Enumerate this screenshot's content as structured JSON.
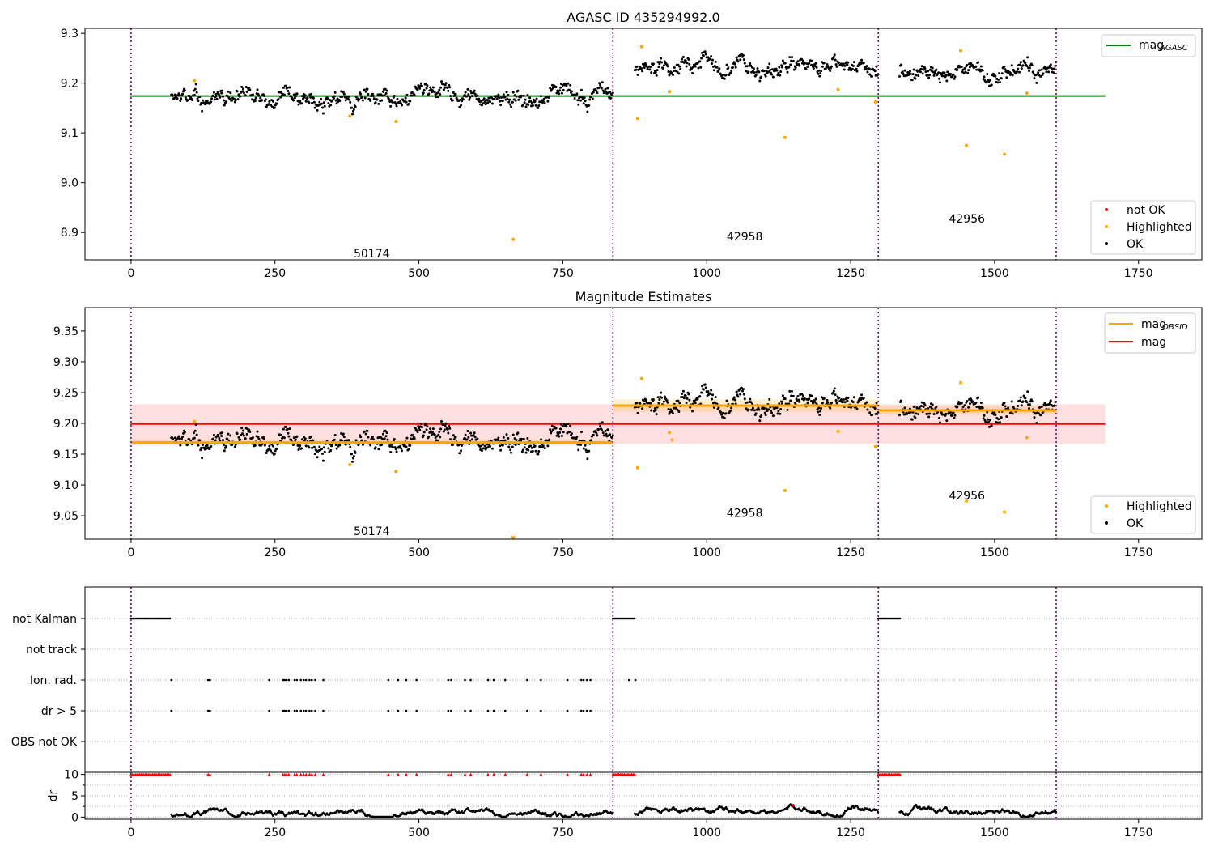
{
  "chart_data": [
    {
      "type": "scatter",
      "title": "AGASC ID 435294992.0",
      "xlim": [
        -80,
        1860
      ],
      "ylim": [
        8.845,
        9.31
      ],
      "xticks": [
        0,
        250,
        500,
        750,
        1000,
        1250,
        1500,
        1750
      ],
      "yticks": [
        "8.9",
        "9.0",
        "9.1",
        "9.2",
        "9.3"
      ],
      "obsid_boundaries": [
        0,
        837,
        1298,
        1607
      ],
      "obsid_labels": [
        {
          "text": "50174",
          "x": 418,
          "y": 8.858
        },
        {
          "text": "42958",
          "x": 1066,
          "y": 8.892
        },
        {
          "text": "42956",
          "x": 1452,
          "y": 8.928
        }
      ],
      "reference_line": {
        "name": "mag_AGASC",
        "y": 9.174,
        "x": [
          -1,
          1692
        ],
        "color": "#008000"
      },
      "segments": [
        {
          "x": [
            70,
            837
          ],
          "mean": 9.172
        },
        {
          "x": [
            875,
            1298
          ],
          "mean": 9.232
        },
        {
          "x": [
            1335,
            1607
          ],
          "mean": 9.223
        }
      ],
      "highlighted": [
        [
          110,
          9.205
        ],
        [
          380,
          9.134
        ],
        [
          460,
          9.123
        ],
        [
          664,
          8.886
        ],
        [
          880,
          9.129
        ],
        [
          887,
          9.273
        ],
        [
          935,
          9.183
        ],
        [
          1136,
          9.091
        ],
        [
          1228,
          9.187
        ],
        [
          1293,
          9.162
        ],
        [
          1441,
          9.265
        ],
        [
          1451,
          9.075
        ],
        [
          1517,
          9.057
        ],
        [
          1556,
          9.18
        ]
      ],
      "legend_top": [
        {
          "label": "mag",
          "sub": "AGASC",
          "color": "#008000"
        }
      ],
      "legend_bottom": [
        {
          "label": "not OK",
          "color": "#ff0000"
        },
        {
          "label": "Highlighted",
          "color": "#ffa500"
        },
        {
          "label": "OK",
          "color": "#000000"
        }
      ]
    },
    {
      "type": "scatter",
      "title": "Magnitude Estimates",
      "xlim": [
        -80,
        1860
      ],
      "ylim": [
        9.012,
        9.388
      ],
      "xticks": [
        0,
        250,
        500,
        750,
        1000,
        1250,
        1500,
        1750
      ],
      "yticks": [
        "9.05",
        "9.10",
        "9.15",
        "9.20",
        "9.25",
        "9.30",
        "9.35"
      ],
      "obsid_boundaries": [
        0,
        837,
        1298,
        1607
      ],
      "obsid_labels": [
        {
          "text": "50174",
          "x": 418,
          "y": 9.025
        },
        {
          "text": "42958",
          "x": 1066,
          "y": 9.055
        },
        {
          "text": "42956",
          "x": 1452,
          "y": 9.083
        }
      ],
      "mag": {
        "name": "mag",
        "y": 9.199,
        "band": [
          9.167,
          9.231
        ],
        "x": [
          -1,
          1692
        ],
        "color": "#ff0000"
      },
      "mag_obsid": [
        {
          "x": [
            0,
            837
          ],
          "y": 9.169,
          "band": [
            9.164,
            9.174
          ]
        },
        {
          "x": [
            837,
            1298
          ],
          "y": 9.229,
          "band": [
            9.219,
            9.239
          ]
        },
        {
          "x": [
            1298,
            1607
          ],
          "y": 9.221,
          "band": [
            9.214,
            9.228
          ]
        }
      ],
      "segments": [
        {
          "x": [
            70,
            837
          ],
          "mean": 9.172
        },
        {
          "x": [
            875,
            1298
          ],
          "mean": 9.232
        },
        {
          "x": [
            1335,
            1607
          ],
          "mean": 9.223
        }
      ],
      "highlighted": [
        [
          110,
          9.203
        ],
        [
          380,
          9.133
        ],
        [
          460,
          9.122
        ],
        [
          664,
          9.013
        ],
        [
          880,
          9.128
        ],
        [
          887,
          9.273
        ],
        [
          935,
          9.185
        ],
        [
          940,
          9.173
        ],
        [
          1136,
          9.091
        ],
        [
          1228,
          9.187
        ],
        [
          1293,
          9.162
        ],
        [
          1441,
          9.266
        ],
        [
          1451,
          9.074
        ],
        [
          1517,
          9.056
        ],
        [
          1556,
          9.177
        ]
      ],
      "legend_top": [
        {
          "label": "mag",
          "sub": "OBSID",
          "color": "#ffa500"
        },
        {
          "label": "mag",
          "sub": "",
          "color": "#ff0000"
        }
      ],
      "legend_bottom": [
        {
          "label": "Highlighted",
          "color": "#ffa500"
        },
        {
          "label": "OK",
          "color": "#000000"
        }
      ]
    },
    {
      "type": "scatter",
      "title": "",
      "xlim": [
        -80,
        1860
      ],
      "xticks": [
        0,
        250,
        500,
        750,
        1000,
        1250,
        1500,
        1750
      ],
      "flag_rows": [
        "not Kalman",
        "not track",
        "Ion. rad.",
        "dr > 5",
        "OBS not OK"
      ],
      "obsid_boundaries": [
        0,
        837,
        1298,
        1607
      ],
      "flags": {
        "not Kalman": [
          [
            0,
            68
          ],
          [
            837,
            876
          ],
          [
            1298,
            1336
          ]
        ],
        "Ion. rad.": [
          70,
          134,
          137,
          240,
          264,
          267,
          270,
          274,
          284,
          288,
          295,
          300,
          304,
          310,
          314,
          320,
          334,
          447,
          464,
          478,
          496,
          551,
          556,
          580,
          590,
          620,
          630,
          650,
          688,
          712,
          758,
          782,
          786,
          792,
          798,
          865,
          876
        ],
        "dr > 5": [
          70,
          134,
          137,
          240,
          264,
          267,
          270,
          274,
          284,
          288,
          295,
          300,
          304,
          310,
          314,
          320,
          334,
          447,
          464,
          478,
          496,
          551,
          556,
          580,
          590,
          620,
          630,
          650,
          688,
          712,
          758,
          782,
          786,
          792,
          798
        ]
      },
      "dr_subplot": {
        "ylabel": "dr",
        "ylim": [
          -0.5,
          10.5
        ],
        "yticks": [
          "0",
          "5",
          "10"
        ],
        "clipped_at_10": [
          [
            0,
            68
          ],
          134,
          137,
          240,
          264,
          267,
          270,
          274,
          284,
          288,
          295,
          300,
          304,
          310,
          314,
          320,
          334,
          447,
          464,
          478,
          496,
          551,
          556,
          580,
          590,
          620,
          630,
          650,
          688,
          712,
          758,
          782,
          786,
          792,
          798,
          [
            837,
            876
          ],
          [
            1298,
            1336
          ]
        ],
        "segments": [
          {
            "x": [
              70,
              837
            ],
            "mean": 0.7
          },
          {
            "x": [
              875,
              1298
            ],
            "mean": 1.6
          },
          {
            "x": [
              1335,
              1607
            ],
            "mean": 1.3
          }
        ],
        "highlighted": [
          [
            1150,
            2.8
          ]
        ]
      }
    }
  ]
}
